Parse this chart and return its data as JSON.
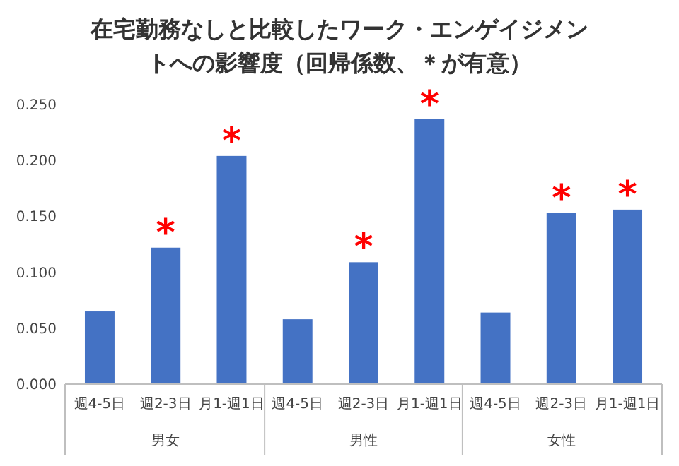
{
  "chart_data": {
    "type": "bar",
    "title": "在宅勤務なしと比較したワーク・エンゲイジメントへの影響度（回帰係数、＊が有意）",
    "categories": [
      "週4-5日",
      "週2-3日",
      "月1-週1日",
      "週4-5日",
      "週2-3日",
      "月1-週1日",
      "週4-5日",
      "週2-3日",
      "月1-週1日"
    ],
    "values": [
      0.065,
      0.122,
      0.204,
      0.058,
      0.109,
      0.237,
      0.064,
      0.153,
      0.156
    ],
    "value_labels": [
      null,
      "*",
      "*",
      null,
      "*",
      "*",
      null,
      "*",
      "*"
    ],
    "color": "#4472c4",
    "ylim": [
      0,
      0.25
    ],
    "yticks": [
      {
        "value": 0,
        "label": "0.000"
      },
      {
        "value": 0.05,
        "label": "0.050"
      },
      {
        "value": 0.1,
        "label": "0.100"
      },
      {
        "value": 0.15,
        "label": "0.150"
      },
      {
        "value": 0.2,
        "label": "0.200"
      },
      {
        "value": 0.25,
        "label": "0.250"
      }
    ],
    "annotations": [
      "男女",
      "男性",
      "女性"
    ],
    "grid": false
  }
}
